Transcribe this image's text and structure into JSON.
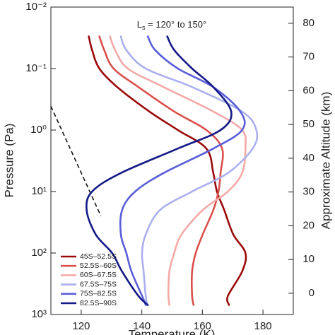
{
  "chart_data": {
    "type": "profile",
    "annotation": {
      "main": "L",
      "sub": "s",
      "rest": " = 120° to 150°"
    },
    "x_label": "Temperature (K)",
    "y_label": "Pressure (Pa)",
    "y2_label": "Approximate Altitude (km)",
    "xlim": [
      110,
      190
    ],
    "xticks": [
      120,
      140,
      160,
      180
    ],
    "ylim": [
      0.01,
      1000
    ],
    "log_y": true,
    "invert_y": true,
    "yticks": [
      {
        "value": 0.01,
        "label": "10⁻²"
      },
      {
        "value": 0.1,
        "label": "10⁻¹"
      },
      {
        "value": 1,
        "label": "10⁰"
      },
      {
        "value": 10,
        "label": "10¹"
      },
      {
        "value": 100,
        "label": "10²"
      },
      {
        "value": 1000,
        "label": "10³"
      }
    ],
    "y2lim": [
      84.8,
      -6.3
    ],
    "y2ticks": [
      0,
      10,
      20,
      30,
      40,
      50,
      60,
      70,
      80
    ],
    "legend": "lower left",
    "y": [
      0.03,
      0.05,
      0.1,
      0.2,
      0.5,
      1,
      2,
      5,
      10,
      20,
      50,
      100,
      200,
      500,
      700
    ],
    "series": [
      {
        "name": "45S–52.5S",
        "color": "#9b0a0a",
        "values": [
          122.5,
          123.6,
          126,
          131.9,
          142.5,
          151.9,
          161.3,
          163.6,
          164.8,
          167.2,
          170.2,
          174.2,
          173.1,
          168.4,
          168.8
        ]
      },
      {
        "name": "52.5S–60S",
        "color": "#d9504c",
        "values": [
          126,
          127.6,
          130.7,
          138.9,
          150.7,
          161.3,
          166.5,
          166,
          165.3,
          163.6,
          160.1,
          157.8,
          156.6,
          156.6,
          157.1
        ]
      },
      {
        "name": "60S–67.5S",
        "color": "#f4a9a8",
        "values": [
          129.5,
          131.2,
          135.4,
          147.2,
          163.6,
          173.1,
          174.2,
          173.1,
          168.4,
          160.1,
          153.1,
          150.7,
          149.1,
          148.8,
          149.1
        ]
      },
      {
        "name": "67.5S–75S",
        "color": "#aab0ee",
        "values": [
          133.1,
          134.9,
          141.3,
          156.6,
          173.1,
          177.8,
          176.6,
          168.4,
          156.6,
          146,
          141.3,
          140.1,
          140.6,
          141.3,
          141.8
        ]
      },
      {
        "name": "75S–82.5S",
        "color": "#5a5ed8",
        "values": [
          142,
          144.4,
          151.9,
          163.6,
          172.5,
          173.1,
          163.6,
          147.2,
          137.8,
          133.5,
          133.1,
          134.9,
          136.6,
          140.1,
          141.3
        ]
      },
      {
        "name": "82.5S–90S",
        "color": "#141a86",
        "values": [
          148.4,
          150.7,
          156.6,
          163.6,
          169.5,
          166,
          151.9,
          133.1,
          123.6,
          121.8,
          124.8,
          130.2,
          133.5,
          138.9,
          142
        ]
      }
    ],
    "reference_line": {
      "x": [
        110,
        126.5
      ],
      "y": [
        0.41,
        25
      ],
      "color": "#111",
      "dashed": true
    }
  }
}
